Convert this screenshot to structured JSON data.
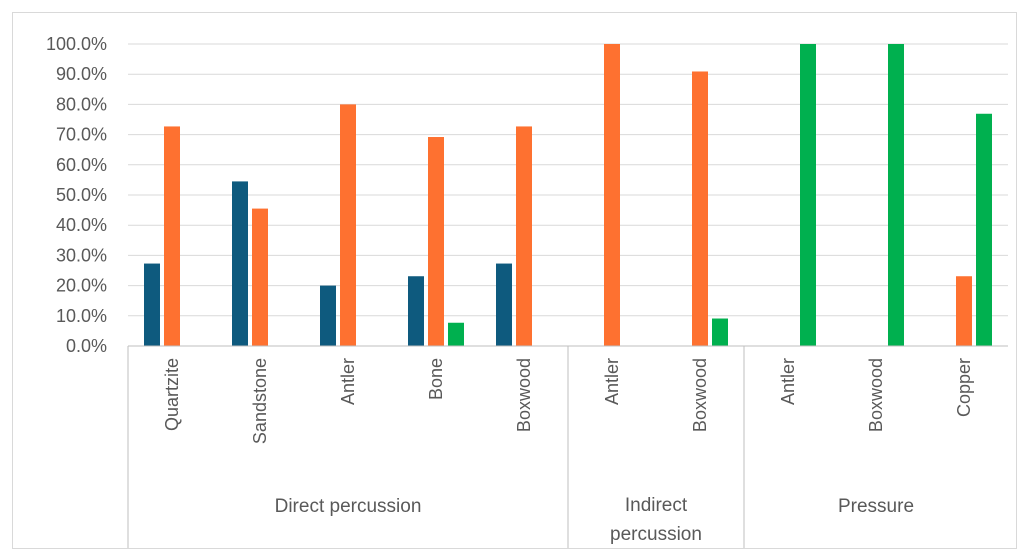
{
  "chart_data": {
    "type": "bar",
    "y_tick_labels": [
      "0.0%",
      "10.0%",
      "20.0%",
      "30.0%",
      "40.0%",
      "50.0%",
      "60.0%",
      "70.0%",
      "80.0%",
      "90.0%",
      "100.0%"
    ],
    "ylim": [
      0,
      100
    ],
    "grid": true,
    "legend": "none",
    "groups": [
      {
        "label": "Direct percussion",
        "categories": [
          "Quartzite",
          "Sandstone",
          "Antler",
          "Bone",
          "Boxwood"
        ]
      },
      {
        "label": "Indirect percussion",
        "categories": [
          "Antler",
          "Boxwood"
        ]
      },
      {
        "label": "Pressure",
        "categories": [
          "Antler",
          "Boxwood",
          "Copper"
        ]
      }
    ],
    "categories": [
      "Quartzite",
      "Sandstone",
      "Antler",
      "Bone",
      "Boxwood",
      "Antler",
      "Boxwood",
      "Antler",
      "Boxwood",
      "Copper"
    ],
    "series": [
      {
        "color": "#0e5a7e",
        "values": [
          27.3,
          54.5,
          20.0,
          23.1,
          27.3,
          0,
          0,
          0,
          0,
          0
        ]
      },
      {
        "color": "#fe7130",
        "values": [
          72.7,
          45.5,
          80.0,
          69.2,
          72.7,
          100.0,
          90.9,
          0,
          0,
          23.1
        ]
      },
      {
        "color": "#00b04f",
        "values": [
          0,
          0,
          0,
          7.7,
          0,
          0,
          9.1,
          100.0,
          100.0,
          76.9
        ]
      }
    ]
  }
}
